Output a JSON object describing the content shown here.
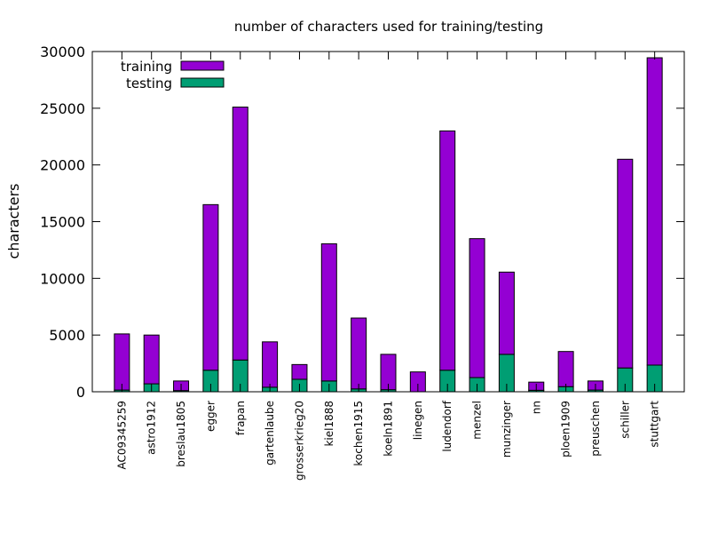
{
  "chart_data": {
    "type": "bar",
    "stacked": true,
    "title": "number of characters used for training/testing",
    "xlabel": "",
    "ylabel": "characters",
    "ylim": [
      0,
      30000
    ],
    "yticks": [
      "0",
      "5000",
      "10000",
      "15000",
      "20000",
      "25000",
      "30000"
    ],
    "legend_position": "top-left",
    "categories": [
      "AC09345259",
      "astro1912",
      "breslau1805",
      "egger",
      "frapan",
      "gartenlaube",
      "grosserkrieg20",
      "kiel1888",
      "kochen1915",
      "koeln1891",
      "linegen",
      "ludendorf",
      "menzel",
      "munzinger",
      "nn",
      "ploen1909",
      "preuschen",
      "schiller",
      "stuttgart"
    ],
    "series": [
      {
        "name": "testing",
        "color": "#009e73",
        "values": [
          150,
          700,
          100,
          1900,
          2800,
          400,
          1100,
          950,
          250,
          180,
          0,
          1900,
          1250,
          3300,
          130,
          450,
          150,
          2100,
          2350
        ]
      },
      {
        "name": "training",
        "color": "#9400d3",
        "values": [
          4950,
          4300,
          850,
          14600,
          22300,
          4000,
          1300,
          12100,
          6250,
          3120,
          1750,
          21100,
          12250,
          7250,
          720,
          3100,
          800,
          18400,
          27100
        ]
      }
    ],
    "legend_order": [
      "training",
      "testing"
    ]
  }
}
